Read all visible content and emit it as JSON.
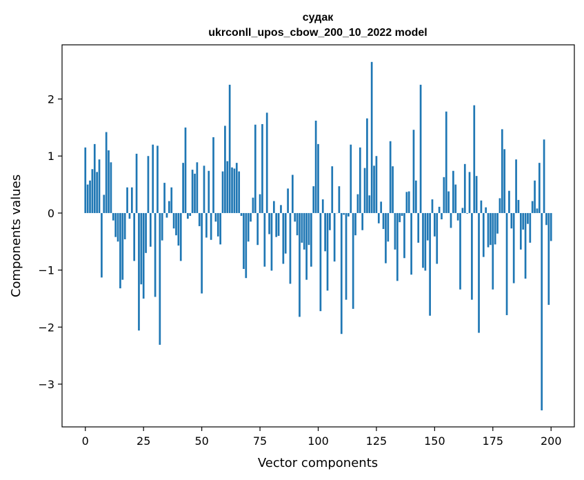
{
  "chart_data": {
    "type": "bar",
    "title_line1": "судак",
    "title_line2": "ukrconll_upos_cbow_200_10_2022 model",
    "xlabel": "Vector components",
    "ylabel": "Components values",
    "xlim": [
      -10,
      210
    ],
    "ylim": [
      -3.75,
      2.95
    ],
    "xticks": [
      0,
      25,
      50,
      75,
      100,
      125,
      150,
      175,
      200
    ],
    "yticks": [
      -3,
      -2,
      -1,
      0,
      1,
      2
    ],
    "bar_color": "#1f77b4",
    "values": [
      1.15,
      0.5,
      0.57,
      0.77,
      1.21,
      0.72,
      0.94,
      -1.13,
      0.32,
      1.42,
      1.1,
      0.89,
      -0.13,
      -0.42,
      -0.5,
      -1.32,
      -1.17,
      -0.46,
      0.45,
      -0.1,
      0.45,
      -0.84,
      1.04,
      -2.06,
      -1.25,
      -1.5,
      -0.7,
      1.0,
      -0.59,
      1.2,
      -1.47,
      1.18,
      -2.31,
      -0.48,
      0.53,
      -0.08,
      0.21,
      0.45,
      -0.27,
      -0.39,
      -0.57,
      -0.84,
      0.88,
      1.5,
      -0.1,
      -0.05,
      0.76,
      0.69,
      0.89,
      -0.23,
      -1.41,
      0.83,
      -0.43,
      0.74,
      -0.47,
      1.33,
      -0.15,
      -0.41,
      -0.55,
      0.73,
      1.53,
      0.91,
      2.25,
      0.8,
      0.78,
      0.88,
      0.73,
      -0.05,
      -0.98,
      -1.14,
      -0.5,
      -0.15,
      0.27,
      1.55,
      -0.56,
      0.33,
      1.56,
      -0.94,
      1.76,
      -0.37,
      -1.01,
      0.21,
      -0.42,
      -0.4,
      0.14,
      -0.89,
      -0.71,
      0.43,
      -1.24,
      0.67,
      -0.15,
      -0.39,
      -1.82,
      -0.52,
      -0.64,
      -1.17,
      -0.56,
      -0.94,
      0.47,
      1.62,
      1.21,
      -1.72,
      0.24,
      -0.67,
      -1.36,
      -0.3,
      0.82,
      -0.85,
      0.0,
      0.47,
      -2.12,
      -0.03,
      -1.52,
      -0.06,
      1.2,
      -1.68,
      -0.39,
      0.33,
      1.15,
      -0.3,
      0.79,
      1.66,
      0.31,
      2.65,
      0.83,
      1.0,
      -0.18,
      0.2,
      -0.28,
      -0.88,
      -0.5,
      1.26,
      0.82,
      -0.64,
      -1.19,
      -0.16,
      -0.05,
      -0.79,
      0.37,
      0.38,
      -1.08,
      1.46,
      0.57,
      -0.52,
      2.25,
      -0.96,
      -1.01,
      -0.48,
      -1.8,
      0.24,
      -0.41,
      -0.89,
      0.11,
      -0.11,
      0.63,
      1.78,
      0.38,
      -0.26,
      0.74,
      0.5,
      -0.13,
      -1.34,
      0.09,
      0.86,
      -0.01,
      0.72,
      -1.52,
      1.89,
      0.65,
      -2.1,
      0.22,
      -0.77,
      0.1,
      -0.6,
      -0.56,
      -1.34,
      -0.55,
      -0.36,
      0.26,
      1.47,
      1.12,
      -1.79,
      0.39,
      -0.27,
      -1.23,
      0.94,
      0.23,
      -0.64,
      -0.29,
      -1.15,
      -0.19,
      -0.52,
      0.21,
      0.57,
      0.08,
      0.88,
      -3.46,
      1.29,
      -0.21,
      -1.61,
      -0.49
    ]
  }
}
